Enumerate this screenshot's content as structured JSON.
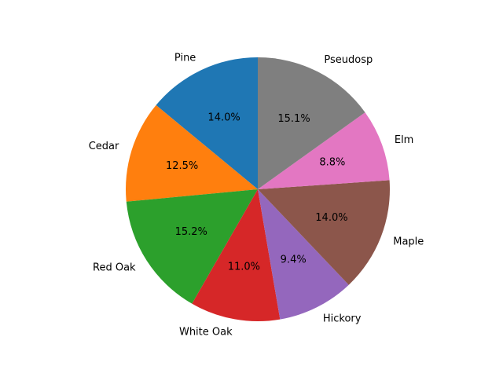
{
  "chart_data": {
    "type": "pie",
    "title": "",
    "start": "top, counter-clockwise",
    "slices": [
      {
        "label": "Pine",
        "value": 14.0,
        "pct_text": "14.0%",
        "color": "#1f77b4"
      },
      {
        "label": "Cedar",
        "value": 12.5,
        "pct_text": "12.5%",
        "color": "#ff7f0e"
      },
      {
        "label": "Red Oak",
        "value": 15.2,
        "pct_text": "15.2%",
        "color": "#2ca02c"
      },
      {
        "label": "White Oak",
        "value": 11.0,
        "pct_text": "11.0%",
        "color": "#d62728"
      },
      {
        "label": "Hickory",
        "value": 9.4,
        "pct_text": "9.4%",
        "color": "#9467bd"
      },
      {
        "label": "Maple",
        "value": 14.0,
        "pct_text": "14.0%",
        "color": "#8c564b"
      },
      {
        "label": "Elm",
        "value": 8.8,
        "pct_text": "8.8%",
        "color": "#e377c2"
      },
      {
        "label": "Pseudosp",
        "value": 15.1,
        "pct_text": "15.1%",
        "color": "#7f7f7f"
      }
    ]
  }
}
